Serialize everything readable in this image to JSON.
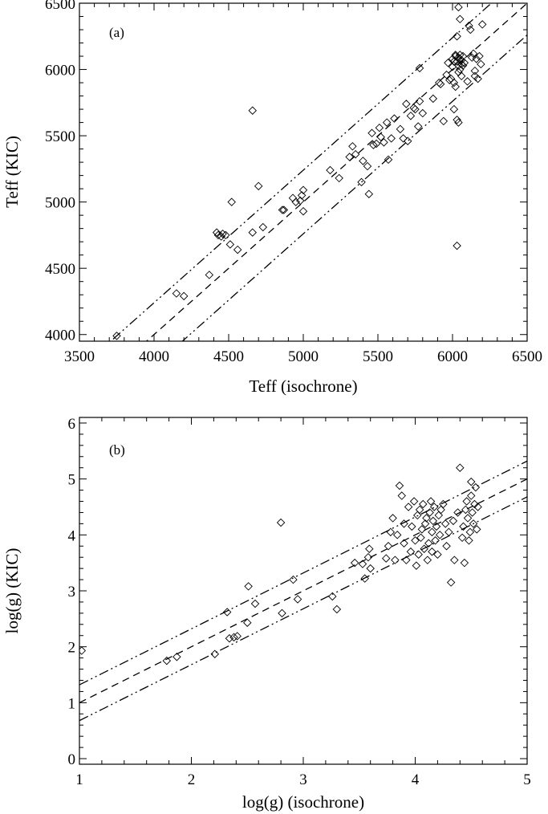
{
  "chart_data": [
    {
      "type": "scatter",
      "panel_label": "(a)",
      "xlabel": "Teff (isochrone)",
      "ylabel": "Teff (KIC)",
      "xlim": [
        3500,
        6500
      ],
      "ylim": [
        3950,
        6500
      ],
      "xticks": [
        3500,
        4000,
        4500,
        5000,
        5500,
        6000,
        6500
      ],
      "xtick_labels": [
        "3500",
        "4000",
        "4500",
        "5000",
        "5500",
        "6000",
        "6500"
      ],
      "yticks": [
        4000,
        4500,
        5000,
        5500,
        6000,
        6500
      ],
      "ytick_labels": [
        "4000",
        "4500",
        "5000",
        "5500",
        "6000",
        "6500"
      ],
      "marker": "diamond",
      "lines": [
        {
          "name": "one-to-one",
          "style": "dashed",
          "offset": 0
        },
        {
          "name": "upper",
          "style": "dash-dot-dot",
          "offset": 240
        },
        {
          "name": "lower",
          "style": "dash-dot-dot",
          "offset": -240
        }
      ],
      "points": {
        "x": [
          3750,
          4150,
          4200,
          4370,
          4420,
          4430,
          4450,
          4460,
          4480,
          4510,
          4520,
          4560,
          4660,
          4660,
          4700,
          4730,
          4860,
          4870,
          4930,
          4950,
          4980,
          4990,
          5000,
          5000,
          5180,
          5240,
          5310,
          5330,
          5350,
          5390,
          5400,
          5430,
          5440,
          5460,
          5470,
          5490,
          5510,
          5520,
          5540,
          5560,
          5570,
          5590,
          5610,
          5650,
          5670,
          5690,
          5700,
          5720,
          5740,
          5750,
          5770,
          5780,
          5780,
          5800,
          5870,
          5910,
          5920,
          5940,
          5960,
          5970,
          5980,
          5990,
          6000,
          6000,
          6010,
          6010,
          6010,
          6020,
          6020,
          6020,
          6030,
          6030,
          6030,
          6030,
          6040,
          6040,
          6040,
          6040,
          6040,
          6050,
          6050,
          6050,
          6050,
          6060,
          6060,
          6060,
          6070,
          6070,
          6080,
          6100,
          6110,
          6120,
          6130,
          6140,
          6150,
          6150,
          6160,
          6170,
          6180,
          6190,
          6200
        ],
        "y": [
          3990,
          4310,
          4290,
          4450,
          4770,
          4750,
          4740,
          4760,
          4750,
          4680,
          5000,
          4640,
          5690,
          4770,
          5120,
          4810,
          4940,
          4940,
          5030,
          5000,
          5010,
          5050,
          5090,
          4930,
          5240,
          5180,
          5340,
          5420,
          5360,
          5150,
          5310,
          5270,
          5060,
          5520,
          5430,
          5440,
          5560,
          5490,
          5450,
          5600,
          5320,
          5480,
          5630,
          5550,
          5480,
          5740,
          5460,
          5650,
          5710,
          5700,
          5570,
          5760,
          6010,
          5670,
          5780,
          5900,
          5890,
          5610,
          5960,
          6050,
          5920,
          5930,
          6020,
          6080,
          6060,
          5700,
          5900,
          5870,
          6100,
          6110,
          4670,
          6060,
          6250,
          5620,
          6090,
          5600,
          6030,
          5980,
          6470,
          6380,
          6000,
          6080,
          6110,
          5950,
          6070,
          6040,
          6100,
          6030,
          6050,
          5910,
          6330,
          6300,
          6090,
          6120,
          5990,
          5950,
          6080,
          5930,
          6100,
          6040,
          6340
        ]
      }
    },
    {
      "type": "scatter",
      "panel_label": "(b)",
      "xlabel": "log(g) (isochrone)",
      "ylabel": "log(g) (KIC)",
      "xlim": [
        1,
        5
      ],
      "ylim": [
        -0.1,
        6.1
      ],
      "xticks": [
        1,
        2,
        3,
        4,
        5
      ],
      "xtick_labels": [
        "1",
        "2",
        "3",
        "4",
        "5"
      ],
      "yticks": [
        0,
        1,
        2,
        3,
        4,
        5,
        6
      ],
      "ytick_labels": [
        "0",
        "1",
        "2",
        "3",
        "4",
        "5",
        "6"
      ],
      "marker": "diamond",
      "lines": [
        {
          "name": "one-to-one",
          "style": "dashed",
          "offset": 0
        },
        {
          "name": "upper",
          "style": "dash-dot-dot",
          "offset": 0.32
        },
        {
          "name": "lower",
          "style": "dash-dot-dot",
          "offset": -0.32
        }
      ],
      "points": {
        "x": [
          1.02,
          1.78,
          1.87,
          2.21,
          2.32,
          2.34,
          2.38,
          2.41,
          2.5,
          2.51,
          2.57,
          2.8,
          2.81,
          2.91,
          2.95,
          3.26,
          3.3,
          3.46,
          3.53,
          3.55,
          3.58,
          3.59,
          3.6,
          3.74,
          3.76,
          3.78,
          3.8,
          3.82,
          3.84,
          3.86,
          3.88,
          3.9,
          3.9,
          3.92,
          3.94,
          3.96,
          3.97,
          3.99,
          4.0,
          4.01,
          4.02,
          4.03,
          4.04,
          4.05,
          4.06,
          4.07,
          4.08,
          4.09,
          4.1,
          4.11,
          4.12,
          4.13,
          4.14,
          4.15,
          4.15,
          4.16,
          4.17,
          4.18,
          4.19,
          4.2,
          4.21,
          4.22,
          4.23,
          4.25,
          4.27,
          4.28,
          4.3,
          4.32,
          4.34,
          4.35,
          4.38,
          4.4,
          4.42,
          4.43,
          4.44,
          4.45,
          4.46,
          4.47,
          4.48,
          4.49,
          4.5,
          4.5,
          4.51,
          4.52,
          4.53,
          4.54,
          4.55,
          4.56
        ],
        "y": [
          1.93,
          1.75,
          1.82,
          1.87,
          2.62,
          2.15,
          2.17,
          2.19,
          2.43,
          3.08,
          2.77,
          4.22,
          2.6,
          3.2,
          2.85,
          2.9,
          2.67,
          3.5,
          3.48,
          3.22,
          3.6,
          3.75,
          3.4,
          3.58,
          3.8,
          4.05,
          4.3,
          3.55,
          4.0,
          4.88,
          4.7,
          3.85,
          4.2,
          3.55,
          4.5,
          3.7,
          4.15,
          4.6,
          3.9,
          3.45,
          4.35,
          3.65,
          4.45,
          3.95,
          4.1,
          4.55,
          3.75,
          4.2,
          4.3,
          3.55,
          3.85,
          4.4,
          4.6,
          3.7,
          4.05,
          4.25,
          4.5,
          3.9,
          4.15,
          3.65,
          4.35,
          4.0,
          4.45,
          4.55,
          4.2,
          3.8,
          4.05,
          3.15,
          4.25,
          3.55,
          4.4,
          5.2,
          3.95,
          4.15,
          3.5,
          4.45,
          4.6,
          4.3,
          3.9,
          4.05,
          4.7,
          4.95,
          4.4,
          4.2,
          4.55,
          4.85,
          4.1,
          4.5
        ]
      }
    }
  ]
}
